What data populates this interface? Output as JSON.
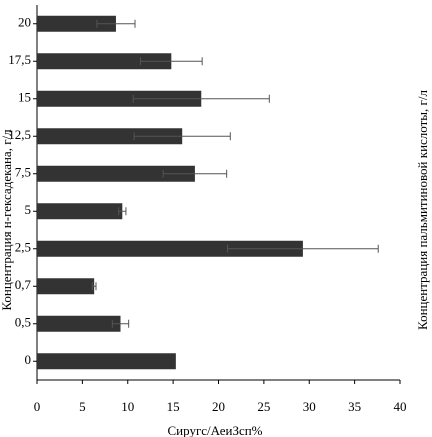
{
  "chart_data": {
    "type": "barh",
    "xlabel": "Сиругс/АеиЗсп%",
    "ylabel": "Концентрация н-гексадекана, г/л",
    "y2label": "Концентрация пальмитиновой кислоты, г/л",
    "categories": [
      "0",
      "0,5",
      "0,7",
      "2,5",
      "5",
      "7,5",
      "12,5",
      "15",
      "17,5",
      "20"
    ],
    "values": [
      15.3,
      9.2,
      6.3,
      29.3,
      9.4,
      17.4,
      16,
      18.1,
      14.8,
      8.7
    ],
    "errors": [
      null,
      0.9,
      0.2,
      8.3,
      0.4,
      3.5,
      5.3,
      7.5,
      3.4,
      2.1
    ],
    "color": "#333333",
    "xlim": [
      0,
      40
    ],
    "xticks": [
      0,
      5,
      10,
      15,
      20,
      25,
      30,
      35,
      40
    ]
  }
}
